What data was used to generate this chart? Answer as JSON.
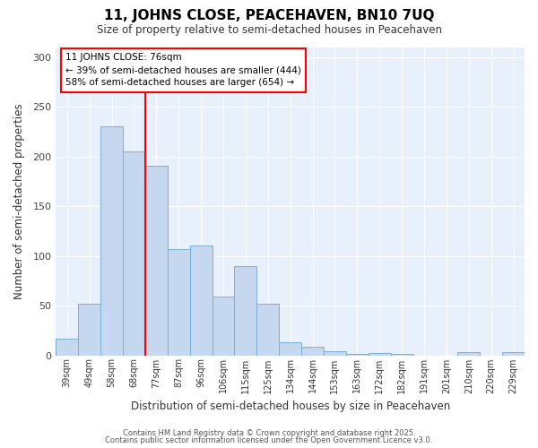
{
  "title": "11, JOHNS CLOSE, PEACEHAVEN, BN10 7UQ",
  "subtitle": "Size of property relative to semi-detached houses in Peacehaven",
  "xlabel": "Distribution of semi-detached houses by size in Peacehaven",
  "ylabel": "Number of semi-detached properties",
  "bar_labels": [
    "39sqm",
    "49sqm",
    "58sqm",
    "68sqm",
    "77sqm",
    "87sqm",
    "96sqm",
    "106sqm",
    "115sqm",
    "125sqm",
    "134sqm",
    "144sqm",
    "153sqm",
    "163sqm",
    "172sqm",
    "182sqm",
    "191sqm",
    "201sqm",
    "210sqm",
    "220sqm",
    "229sqm"
  ],
  "bar_values": [
    17,
    52,
    230,
    205,
    191,
    107,
    110,
    59,
    90,
    52,
    13,
    9,
    4,
    1,
    2,
    1,
    0,
    0,
    3,
    0,
    3
  ],
  "bar_color": "#c5d8f0",
  "bar_edge_color": "#7bafd4",
  "background_color": "#e8f0fb",
  "property_label": "11 JOHNS CLOSE: 76sqm",
  "pct_smaller": 39,
  "count_smaller": 444,
  "pct_larger": 58,
  "count_larger": 654,
  "vline_bin_index": 4,
  "ylim": [
    0,
    310
  ],
  "yticks": [
    0,
    50,
    100,
    150,
    200,
    250,
    300
  ],
  "footer1": "Contains HM Land Registry data © Crown copyright and database right 2025.",
  "footer2": "Contains public sector information licensed under the Open Government Licence v3.0."
}
